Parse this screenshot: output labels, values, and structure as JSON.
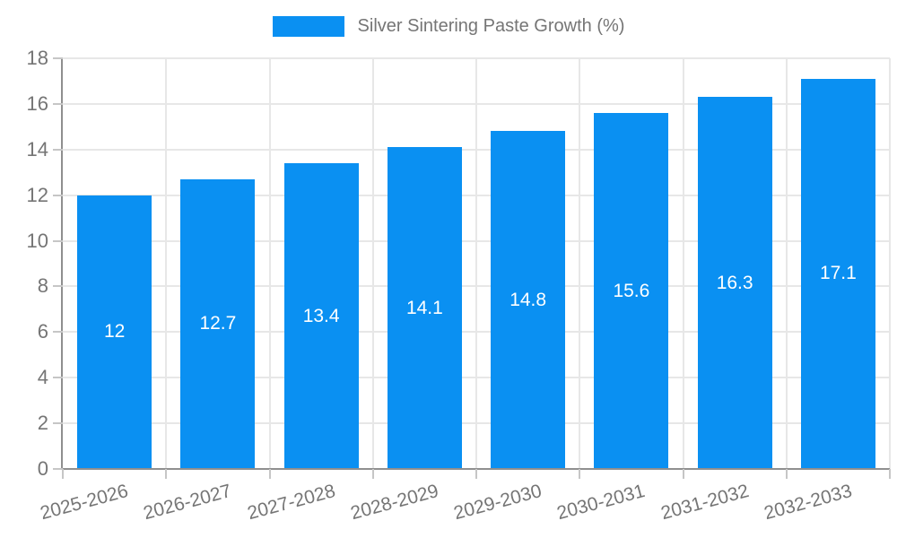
{
  "legend": {
    "label": "Silver Sintering Paste Growth (%)"
  },
  "chart_data": {
    "type": "bar",
    "title": "Silver Sintering Paste Growth (%)",
    "categories": [
      "2025-2026",
      "2026-2027",
      "2027-2028",
      "2028-2029",
      "2029-2030",
      "2030-2031",
      "2031-2032",
      "2032-2033"
    ],
    "values": [
      12,
      12.7,
      13.4,
      14.1,
      14.8,
      15.6,
      16.3,
      17.1
    ],
    "value_labels": [
      "12",
      "12.7",
      "13.4",
      "14.1",
      "14.8",
      "15.6",
      "16.3",
      "17.1"
    ],
    "series_name": "Silver Sintering Paste Growth (%)",
    "xlabel": "",
    "ylabel": "",
    "ylim": [
      0,
      18
    ],
    "yticks": [
      0,
      2,
      4,
      6,
      8,
      10,
      12,
      14,
      16,
      18
    ],
    "grid": true,
    "legend_position": "top",
    "x_label_rotation_deg": -15
  },
  "colors": {
    "background": "#ffffff",
    "bar": "#0a90f2",
    "value_label_text": "#ffffff",
    "axis_line": "#8f8f8f",
    "grid_line": "#e7e7e7",
    "tick_line": "#c6c6c6",
    "tick_text": "#757575",
    "legend_text": "#757575"
  }
}
